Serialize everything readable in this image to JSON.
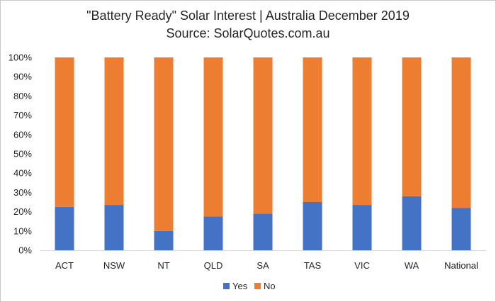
{
  "chart_data": {
    "type": "bar",
    "stacked": true,
    "percent_stacked": true,
    "title": "\"Battery Ready\" Solar Interest | Australia December 2019",
    "subtitle": "Source: SolarQuotes.com.au",
    "categories": [
      "ACT",
      "NSW",
      "NT",
      "QLD",
      "SA",
      "TAS",
      "VIC",
      "WA",
      "National"
    ],
    "series": [
      {
        "name": "Yes",
        "color": "#4472C4",
        "values": [
          22.5,
          23.5,
          10,
          17.5,
          19,
          25,
          23.5,
          28,
          22
        ]
      },
      {
        "name": "No",
        "color": "#ED7D31",
        "values": [
          77.5,
          76.5,
          90,
          82.5,
          81,
          75,
          76.5,
          72,
          78
        ]
      }
    ],
    "y_ticks": [
      "0%",
      "10%",
      "20%",
      "30%",
      "40%",
      "50%",
      "60%",
      "70%",
      "80%",
      "90%",
      "100%"
    ],
    "ylim": [
      0,
      100
    ],
    "xlabel": "",
    "ylabel": "",
    "grid": false,
    "legend_position": "bottom"
  }
}
